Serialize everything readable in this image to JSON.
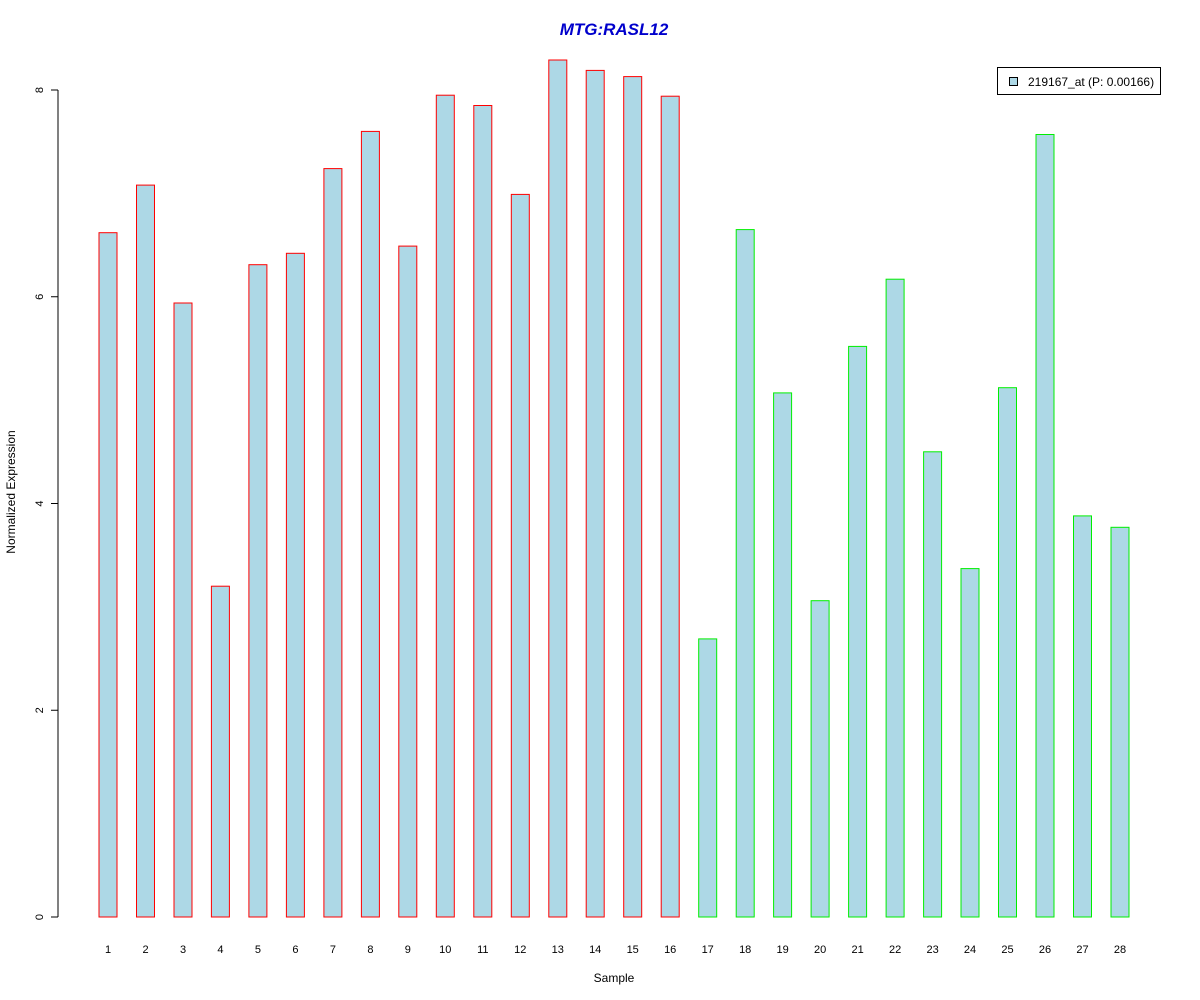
{
  "chart_data": {
    "type": "bar",
    "title": "MTG:RASL12",
    "xlabel": "Sample",
    "ylabel": "Normalized Expression",
    "categories": [
      "1",
      "2",
      "3",
      "4",
      "5",
      "6",
      "7",
      "8",
      "9",
      "10",
      "11",
      "12",
      "13",
      "14",
      "15",
      "16",
      "17",
      "18",
      "19",
      "20",
      "21",
      "22",
      "23",
      "24",
      "25",
      "26",
      "27",
      "28"
    ],
    "values": [
      6.62,
      7.08,
      5.94,
      3.2,
      6.31,
      6.42,
      7.24,
      7.6,
      6.49,
      7.95,
      7.85,
      6.99,
      8.29,
      8.19,
      8.13,
      7.94,
      2.69,
      6.65,
      5.07,
      3.06,
      5.52,
      6.17,
      4.5,
      3.37,
      5.12,
      7.57,
      3.88,
      3.77
    ],
    "groups": [
      {
        "range": [
          1,
          16
        ],
        "border_color": "#ff0000"
      },
      {
        "range": [
          17,
          28
        ],
        "border_color": "#00ee00"
      }
    ],
    "fill_color": "#add8e6",
    "yticks": [
      0,
      2,
      4,
      6,
      8
    ],
    "ylim": [
      0,
      8.3
    ],
    "legend": {
      "label": "219167_at (P: 0.00166)",
      "position": "top-right"
    },
    "grid": false
  },
  "colors": {
    "title": "#0000cc",
    "bar_fill": "#add8e6",
    "group1_border": "#ff0000",
    "group2_border": "#00ee00"
  }
}
